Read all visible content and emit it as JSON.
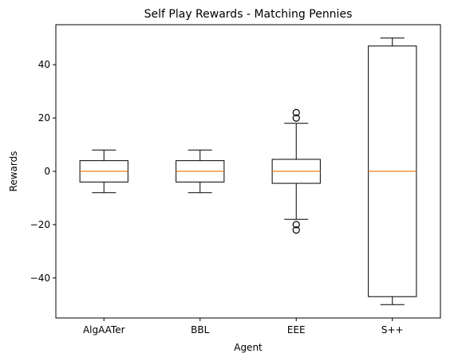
{
  "chart_data": {
    "type": "box",
    "title": "Self Play Rewards - Matching Pennies",
    "xlabel": "Agent",
    "ylabel": "Rewards",
    "categories": [
      "AlgAATer",
      "BBL",
      "EEE",
      "S++"
    ],
    "ylim": [
      -55,
      55
    ],
    "yticks": [
      -40,
      -20,
      0,
      20,
      40
    ],
    "ytick_labels": [
      "−40",
      "−20",
      "0",
      "20",
      "40"
    ],
    "grid": false,
    "legend": "none",
    "boxes": [
      {
        "name": "AlgAATer",
        "whislo": -8,
        "q1": -4,
        "med": 0,
        "q3": 4,
        "whishi": 8,
        "fliers": []
      },
      {
        "name": "BBL",
        "whislo": -8,
        "q1": -4,
        "med": 0,
        "q3": 4,
        "whishi": 8,
        "fliers": []
      },
      {
        "name": "EEE",
        "whislo": -18,
        "q1": -4.5,
        "med": 0,
        "q3": 4.5,
        "whishi": 18,
        "fliers": [
          -22,
          -20,
          20,
          22
        ]
      },
      {
        "name": "S++",
        "whislo": -50,
        "q1": -47,
        "med": 0,
        "q3": 47,
        "whishi": 50,
        "fliers": []
      }
    ],
    "colors": {
      "box": "#000000",
      "median": "#ff7f0e",
      "flier": "#000000"
    }
  }
}
